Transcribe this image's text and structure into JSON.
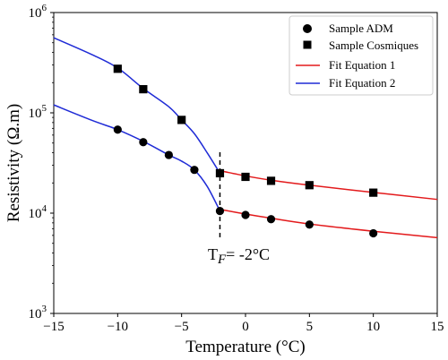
{
  "chart_data": {
    "type": "scatter",
    "xlabel": "Temperature (°C)",
    "ylabel": "Resistivity (Ω.m)",
    "xlim": [
      -15,
      15
    ],
    "ylim": [
      1000,
      1000000
    ],
    "yscale": "log",
    "grid": false,
    "legend": "top-right",
    "x_ticks": [
      -15,
      -10,
      -5,
      0,
      5,
      10,
      15
    ],
    "y_ticks": [
      {
        "value": 1000,
        "base": "10",
        "exp": "3"
      },
      {
        "value": 10000,
        "base": "10",
        "exp": "4"
      },
      {
        "value": 100000,
        "base": "10",
        "exp": "5"
      },
      {
        "value": 1000000,
        "base": "10",
        "exp": "6"
      }
    ],
    "series": [
      {
        "name": "Sample ADM",
        "marker": "circle",
        "color": "#000000",
        "points": [
          {
            "x": -10,
            "y": 68000
          },
          {
            "x": -8,
            "y": 51000
          },
          {
            "x": -6,
            "y": 38000
          },
          {
            "x": -4,
            "y": 27000
          },
          {
            "x": -2,
            "y": 10500
          },
          {
            "x": 0,
            "y": 9600
          },
          {
            "x": 2,
            "y": 8700
          },
          {
            "x": 5,
            "y": 7700
          },
          {
            "x": 10,
            "y": 6300
          }
        ]
      },
      {
        "name": "Sample Cosmiques",
        "marker": "square",
        "color": "#000000",
        "points": [
          {
            "x": -10,
            "y": 275000
          },
          {
            "x": -8,
            "y": 172000
          },
          {
            "x": -5,
            "y": 85000
          },
          {
            "x": -2,
            "y": 25000
          },
          {
            "x": 0,
            "y": 23000
          },
          {
            "x": 2,
            "y": 21000
          },
          {
            "x": 5,
            "y": 19000
          },
          {
            "x": 10,
            "y": 16000
          }
        ]
      }
    ],
    "fits": [
      {
        "name": "Fit Equation 1",
        "color": "#e31a1c",
        "curves": [
          {
            "x": [
              -2,
              0,
              2,
              5,
              10,
              15
            ],
            "y": [
              26500,
              23500,
              21300,
              19000,
              16100,
              13700
            ]
          },
          {
            "x": [
              -2,
              0,
              2,
              5,
              10,
              15
            ],
            "y": [
              10900,
              9800,
              8900,
              7800,
              6600,
              5700
            ]
          }
        ]
      },
      {
        "name": "Fit Equation 2",
        "color": "#1f2bd6",
        "curves": [
          {
            "x": [
              -15,
              -12,
              -10,
              -8,
              -6,
              -5,
              -4,
              -3,
              -2
            ],
            "y": [
              560000,
              380000,
              280000,
              175000,
              115000,
              85000,
              62000,
              40000,
              25000
            ]
          },
          {
            "x": [
              -15,
              -12,
              -10,
              -8,
              -6,
              -5,
              -4,
              -3,
              -2
            ],
            "y": [
              120000,
              84000,
              68000,
              52000,
              38000,
              33000,
              27000,
              18500,
              10500
            ]
          }
        ]
      }
    ],
    "annotation": {
      "x": -2,
      "text_main": "T",
      "text_sub": "F",
      "text_rest": "= -2°C"
    }
  }
}
